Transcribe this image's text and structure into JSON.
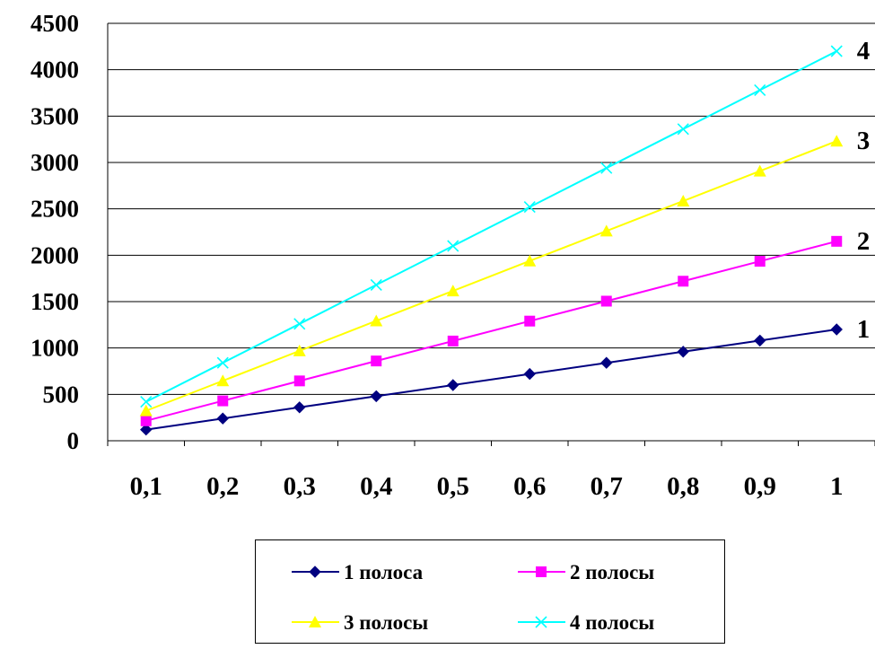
{
  "chart_data": {
    "type": "line",
    "categories": [
      "0,1",
      "0,2",
      "0,3",
      "0,4",
      "0,5",
      "0,6",
      "0,7",
      "0,8",
      "0,9",
      "1"
    ],
    "ylim": [
      0,
      4500
    ],
    "yticks": [
      "0",
      "500",
      "1000",
      "1500",
      "2000",
      "2500",
      "3000",
      "3500",
      "4000",
      "4500"
    ],
    "grid": "horizontal",
    "legend_position": "bottom",
    "series": [
      {
        "name": "1 полоса",
        "end_label": "1",
        "color": "#000080",
        "marker": "diamond",
        "values": [
          120,
          240,
          360,
          480,
          600,
          720,
          840,
          960,
          1080,
          1200
        ]
      },
      {
        "name": "2 полосы",
        "end_label": "2",
        "color": "#ff00ff",
        "marker": "square",
        "values": [
          215,
          430,
          645,
          860,
          1075,
          1290,
          1505,
          1720,
          1935,
          2150
        ]
      },
      {
        "name": "3 полосы",
        "end_label": "3",
        "color": "#ffff00",
        "marker": "triangle",
        "values": [
          323,
          646,
          969,
          1292,
          1615,
          1938,
          2261,
          2584,
          2907,
          3230
        ]
      },
      {
        "name": "4 полосы",
        "end_label": "4",
        "color": "#00ffff",
        "marker": "x",
        "values": [
          420,
          840,
          1260,
          1680,
          2100,
          2520,
          2940,
          3360,
          3780,
          4200
        ]
      }
    ]
  }
}
